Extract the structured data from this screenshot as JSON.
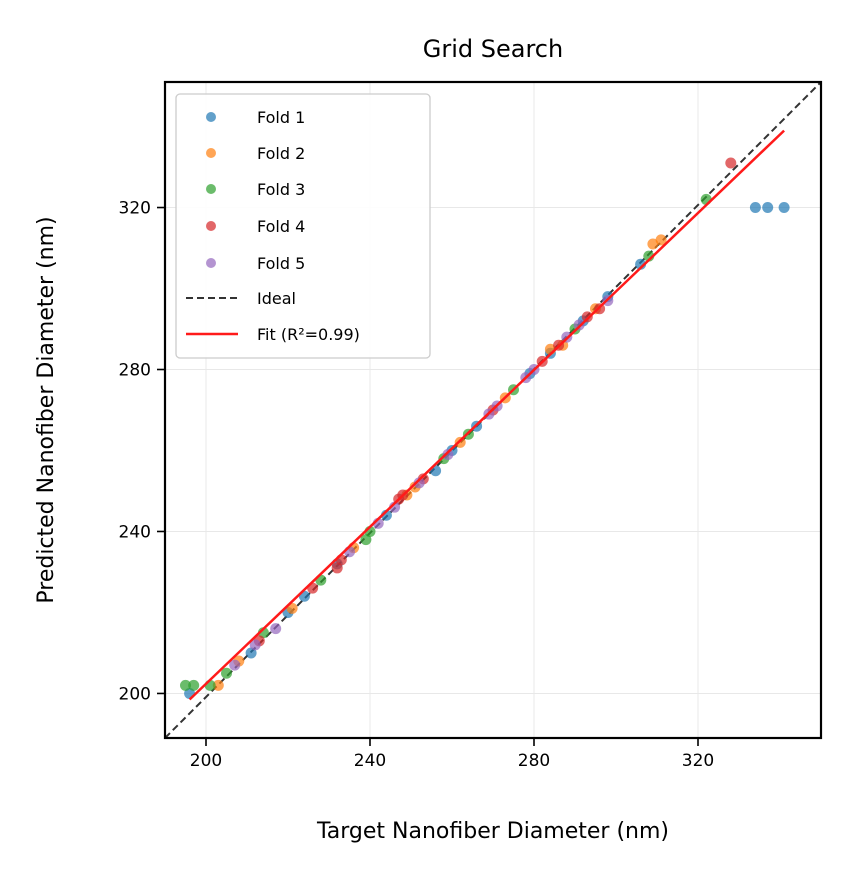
{
  "chart_data": {
    "type": "scatter",
    "title": "Grid Search",
    "xlabel": "Target Nanofiber Diameter (nm)",
    "ylabel": "Predicted Nanofiber  Diameter (nm)",
    "xlim": [
      190,
      350
    ],
    "ylim": [
      189,
      351
    ],
    "xticks": [
      200,
      240,
      280,
      320
    ],
    "yticks": [
      200,
      240,
      280,
      320
    ],
    "grid": true,
    "legend_position": "top-left",
    "series": [
      {
        "name": "Fold 1",
        "color": "#1f77b4",
        "points": [
          [
            196,
            200
          ],
          [
            211,
            210
          ],
          [
            220,
            220
          ],
          [
            224,
            224
          ],
          [
            232,
            232
          ],
          [
            244,
            244
          ],
          [
            256,
            255
          ],
          [
            260,
            260
          ],
          [
            266,
            266
          ],
          [
            279,
            279
          ],
          [
            284,
            284
          ],
          [
            292,
            292
          ],
          [
            298,
            298
          ],
          [
            306,
            306
          ],
          [
            334,
            320
          ],
          [
            337,
            320
          ],
          [
            341,
            320
          ]
        ]
      },
      {
        "name": "Fold 2",
        "color": "#ff7f0e",
        "points": [
          [
            203,
            202
          ],
          [
            208,
            208
          ],
          [
            221,
            221
          ],
          [
            236,
            236
          ],
          [
            249,
            249
          ],
          [
            251,
            251
          ],
          [
            262,
            262
          ],
          [
            273,
            273
          ],
          [
            284,
            285
          ],
          [
            287,
            286
          ],
          [
            295,
            295
          ],
          [
            309,
            311
          ],
          [
            311,
            312
          ]
        ]
      },
      {
        "name": "Fold 3",
        "color": "#2ca02c",
        "points": [
          [
            195,
            202
          ],
          [
            197,
            202
          ],
          [
            201,
            202
          ],
          [
            205,
            205
          ],
          [
            214,
            215
          ],
          [
            228,
            228
          ],
          [
            239,
            238
          ],
          [
            240,
            240
          ],
          [
            258,
            258
          ],
          [
            264,
            264
          ],
          [
            275,
            275
          ],
          [
            290,
            290
          ],
          [
            308,
            308
          ],
          [
            322,
            322
          ]
        ]
      },
      {
        "name": "Fold 4",
        "color": "#d62728",
        "points": [
          [
            213,
            213
          ],
          [
            226,
            226
          ],
          [
            232,
            231
          ],
          [
            233,
            233
          ],
          [
            247,
            248
          ],
          [
            248,
            249
          ],
          [
            253,
            253
          ],
          [
            270,
            270
          ],
          [
            282,
            282
          ],
          [
            286,
            286
          ],
          [
            293,
            293
          ],
          [
            296,
            295
          ],
          [
            328,
            331
          ]
        ]
      },
      {
        "name": "Fold 5",
        "color": "#9467bd",
        "points": [
          [
            207,
            207
          ],
          [
            212,
            212
          ],
          [
            217,
            216
          ],
          [
            235,
            235
          ],
          [
            242,
            242
          ],
          [
            246,
            246
          ],
          [
            252,
            252
          ],
          [
            259,
            259
          ],
          [
            269,
            269
          ],
          [
            271,
            271
          ],
          [
            278,
            278
          ],
          [
            280,
            280
          ],
          [
            288,
            288
          ],
          [
            291,
            291
          ],
          [
            298,
            297
          ]
        ]
      }
    ],
    "ideal_line": {
      "name": "Ideal",
      "color": "#333333",
      "points": [
        [
          190,
          189
        ],
        [
          350,
          351
        ]
      ]
    },
    "fit_line": {
      "name": "Fit (R²=0.99)",
      "color": "#ff1a1a",
      "points": [
        [
          196,
          198.5
        ],
        [
          341,
          339
        ]
      ]
    }
  }
}
